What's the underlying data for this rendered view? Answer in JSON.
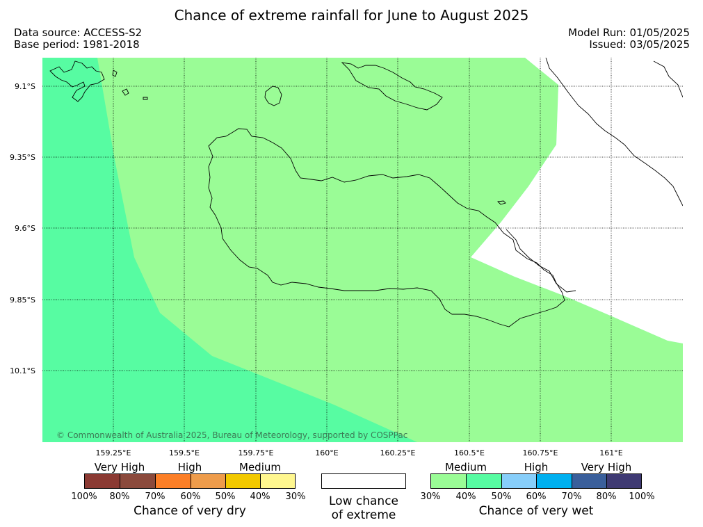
{
  "header": {
    "title": "Chance of extreme rainfall for June to August 2025",
    "data_source": "Data source: ACCESS-S2",
    "base_period": "Base period: 1981-2018",
    "model_run": "Model Run: 01/05/2025",
    "issued": "Issued: 03/05/2025"
  },
  "map": {
    "lat_labels": [
      "9.1°S",
      "9.35°S",
      "9.6°S",
      "9.85°S",
      "10.1°S"
    ],
    "lon_labels": [
      "159.25°E",
      "159.5°E",
      "159.75°E",
      "160°E",
      "160.25°E",
      "160.5°E",
      "160.75°E",
      "161°E"
    ],
    "copyright": "© Commonwealth of Australia 2025, Bureau of Meteorology, supported by COSPPac",
    "zone_colors": {
      "wet_medium_30_40": "#9afc96",
      "wet_medium_40_50": "#57fca2",
      "no_signal": "#ffffff"
    }
  },
  "legend": {
    "dry": {
      "categories": [
        "Very High",
        "High",
        "Medium"
      ],
      "colors": [
        "#8b3a33",
        "#8b4a3c",
        "#fc7f27",
        "#ee9c4b",
        "#f2c900",
        "#fff78f"
      ],
      "ticks": [
        "100%",
        "80%",
        "70%",
        "60%",
        "50%",
        "40%",
        "30%"
      ],
      "title": "Chance of very dry"
    },
    "neutral": {
      "line1": "Low chance",
      "line2": "of extreme"
    },
    "wet": {
      "categories": [
        "Medium",
        "High",
        "Very High"
      ],
      "colors": [
        "#9afc96",
        "#57fca2",
        "#87cefa",
        "#00b0f0",
        "#3a5f9b",
        "#3f3a73"
      ],
      "ticks": [
        "30%",
        "40%",
        "50%",
        "60%",
        "70%",
        "80%",
        "100%"
      ],
      "title": "Chance of very wet"
    }
  }
}
